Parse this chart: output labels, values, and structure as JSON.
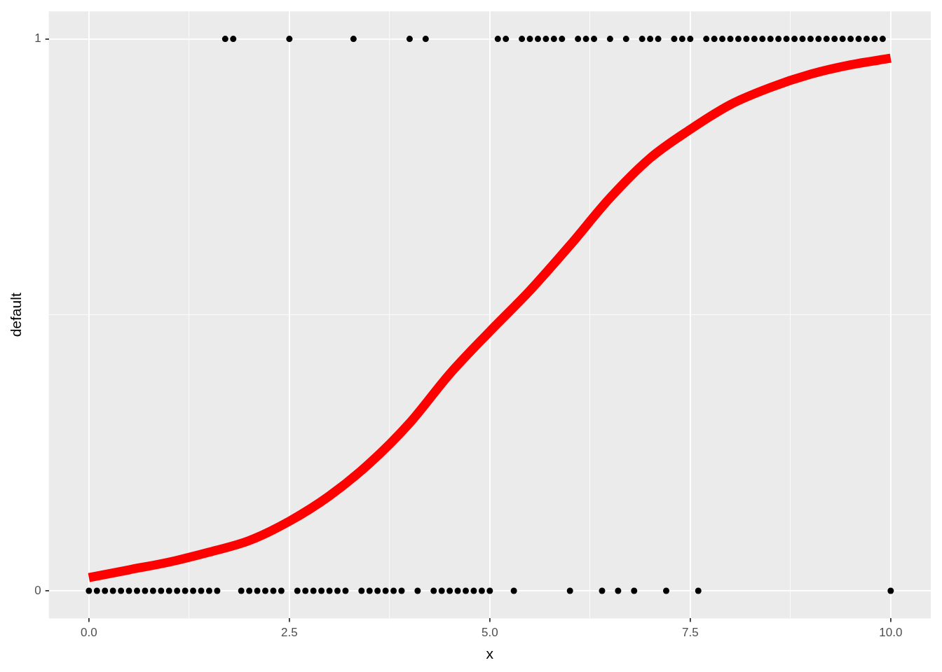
{
  "chart_data": {
    "type": "scatter",
    "xlabel": "x",
    "ylabel": "default",
    "xlim": [
      -0.5,
      10.5
    ],
    "ylim": [
      -0.05,
      1.05
    ],
    "xticks": [
      {
        "value": 0,
        "label": "0.0"
      },
      {
        "value": 1.25,
        "label": null
      },
      {
        "value": 2.5,
        "label": "2.5"
      },
      {
        "value": 3.75,
        "label": null
      },
      {
        "value": 5,
        "label": "5.0"
      },
      {
        "value": 6.25,
        "label": null
      },
      {
        "value": 7.5,
        "label": "7.5"
      },
      {
        "value": 8.75,
        "label": null
      },
      {
        "value": 10,
        "label": "10.0"
      }
    ],
    "yticks": [
      0,
      {
        "value": 0.5,
        "label": null
      },
      1
    ],
    "grid": true,
    "legend": false,
    "marker": "circle",
    "series": [
      {
        "type": "scatter",
        "color": "#000000",
        "x": [
          0,
          0.1,
          0.2,
          0.3,
          0.4,
          0.5,
          0.6,
          0.7,
          0.8,
          0.9,
          1,
          1.1,
          1.2,
          1.3,
          1.4,
          1.5,
          1.6,
          1.7,
          1.8,
          1.9,
          2,
          2.1,
          2.2,
          2.3,
          2.4,
          2.5,
          2.6,
          2.7,
          2.8,
          2.9,
          3,
          3.1,
          3.2,
          3.3,
          3.4,
          3.5,
          3.6,
          3.7,
          3.8,
          3.9,
          4,
          4.1,
          4.2,
          4.3,
          4.4,
          4.5,
          4.6,
          4.7,
          4.8,
          4.9,
          5,
          5.1,
          5.2,
          5.3,
          5.4,
          5.5,
          5.6,
          5.7,
          5.8,
          5.9,
          6,
          6.1,
          6.2,
          6.3,
          6.4,
          6.5,
          6.6,
          6.7,
          6.8,
          6.9,
          7,
          7.1,
          7.2,
          7.3,
          7.4,
          7.5,
          7.6,
          7.7,
          7.8,
          7.9,
          8,
          8.1,
          8.2,
          8.3,
          8.4,
          8.5,
          8.6,
          8.7,
          8.8,
          8.9,
          9,
          9.1,
          9.2,
          9.3,
          9.4,
          9.5,
          9.6,
          9.7,
          9.8,
          9.9,
          10
        ],
        "values": [
          0,
          0,
          0,
          0,
          0,
          0,
          0,
          0,
          0,
          0,
          0,
          0,
          0,
          0,
          0,
          0,
          0,
          1,
          1,
          0,
          0,
          0,
          0,
          0,
          0,
          1,
          0,
          0,
          0,
          0,
          0,
          0,
          0,
          1,
          0,
          0,
          0,
          0,
          0,
          0,
          1,
          0,
          1,
          0,
          0,
          0,
          0,
          0,
          0,
          0,
          0,
          1,
          1,
          0,
          1,
          1,
          1,
          1,
          1,
          1,
          0,
          1,
          1,
          1,
          0,
          1,
          0,
          1,
          0,
          1,
          1,
          1,
          0,
          1,
          1,
          1,
          0,
          1,
          1,
          1,
          1,
          1,
          1,
          1,
          1,
          1,
          1,
          1,
          1,
          1,
          1,
          1,
          1,
          1,
          1,
          1,
          1,
          1,
          1,
          1,
          0
        ]
      },
      {
        "type": "line",
        "color": "#ff0000",
        "marker": "none",
        "x": [
          0,
          0.5,
          1,
          1.5,
          2,
          2.5,
          3,
          3.5,
          4,
          4.5,
          5,
          5.5,
          6,
          6.5,
          7,
          7.5,
          8,
          8.5,
          9,
          9.5,
          10
        ],
        "values": [
          0.024,
          0.038,
          0.052,
          0.07,
          0.091,
          0.126,
          0.172,
          0.231,
          0.304,
          0.393,
          0.47,
          0.544,
          0.626,
          0.712,
          0.784,
          0.836,
          0.881,
          0.912,
          0.936,
          0.953,
          0.965
        ]
      }
    ]
  }
}
